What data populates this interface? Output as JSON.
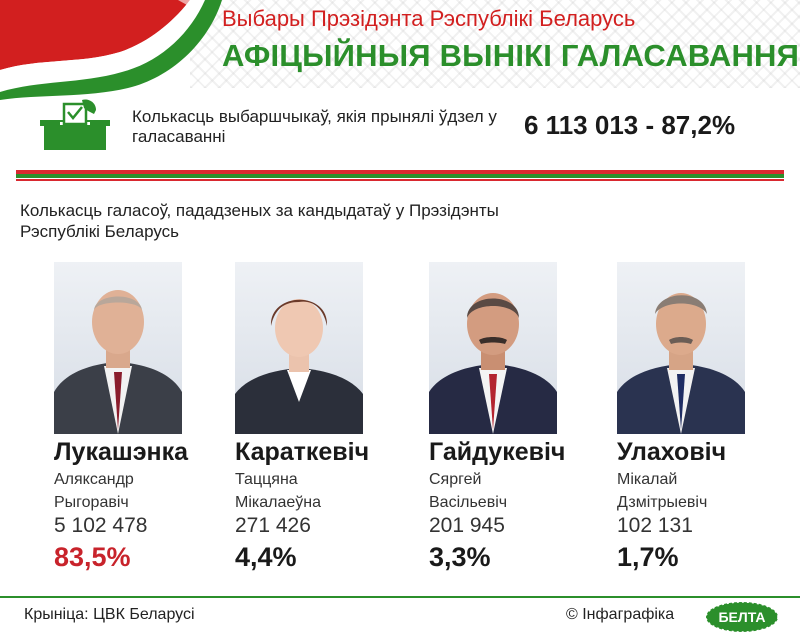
{
  "header": {
    "subtitle": "Выбары Прэзідэнта Рэспублікі Беларусь",
    "title": "АФІЦЫЙНЫЯ ВЫНІКІ ГАЛАСАВАННЯ"
  },
  "turnout": {
    "label": "Колькасць выбаршчыкаў, якія прынялі ўдзел у галасаванні",
    "value": "6 113 013 - 87,2%",
    "icon": "ballot-box-icon"
  },
  "votes_heading": "Колькасць галасоў, пададзеных за кандыдатаў у Прэзідэнты Рэспублікі Беларусь",
  "candidates": [
    {
      "surname": "Лукашэнка",
      "given_line1": "Аляксандр",
      "given_line2": "Рыгоравіч",
      "votes": "5 102 478",
      "percent": "83,5%"
    },
    {
      "surname": "Караткевіч",
      "given_line1": "Таццяна",
      "given_line2": "Мікалаеўна",
      "votes": "271 426",
      "percent": "4,4%"
    },
    {
      "surname": "Гайдукевіч",
      "given_line1": "Сяргей",
      "given_line2": "Васільевіч",
      "votes": "201 945",
      "percent": "3,3%"
    },
    {
      "surname": "Улаховіч",
      "given_line1": "Мікалай",
      "given_line2": "Дзмітрыевіч",
      "votes": "102 131",
      "percent": "1,7%"
    }
  ],
  "footer": {
    "source": "Крыніца: ЦВК Беларусі",
    "copyright": "© Інфаграфіка",
    "logo_text": "БЕЛТА"
  },
  "colors": {
    "red": "#d21f1f",
    "green": "#2b8f2b",
    "winner_red": "#c8232b"
  }
}
